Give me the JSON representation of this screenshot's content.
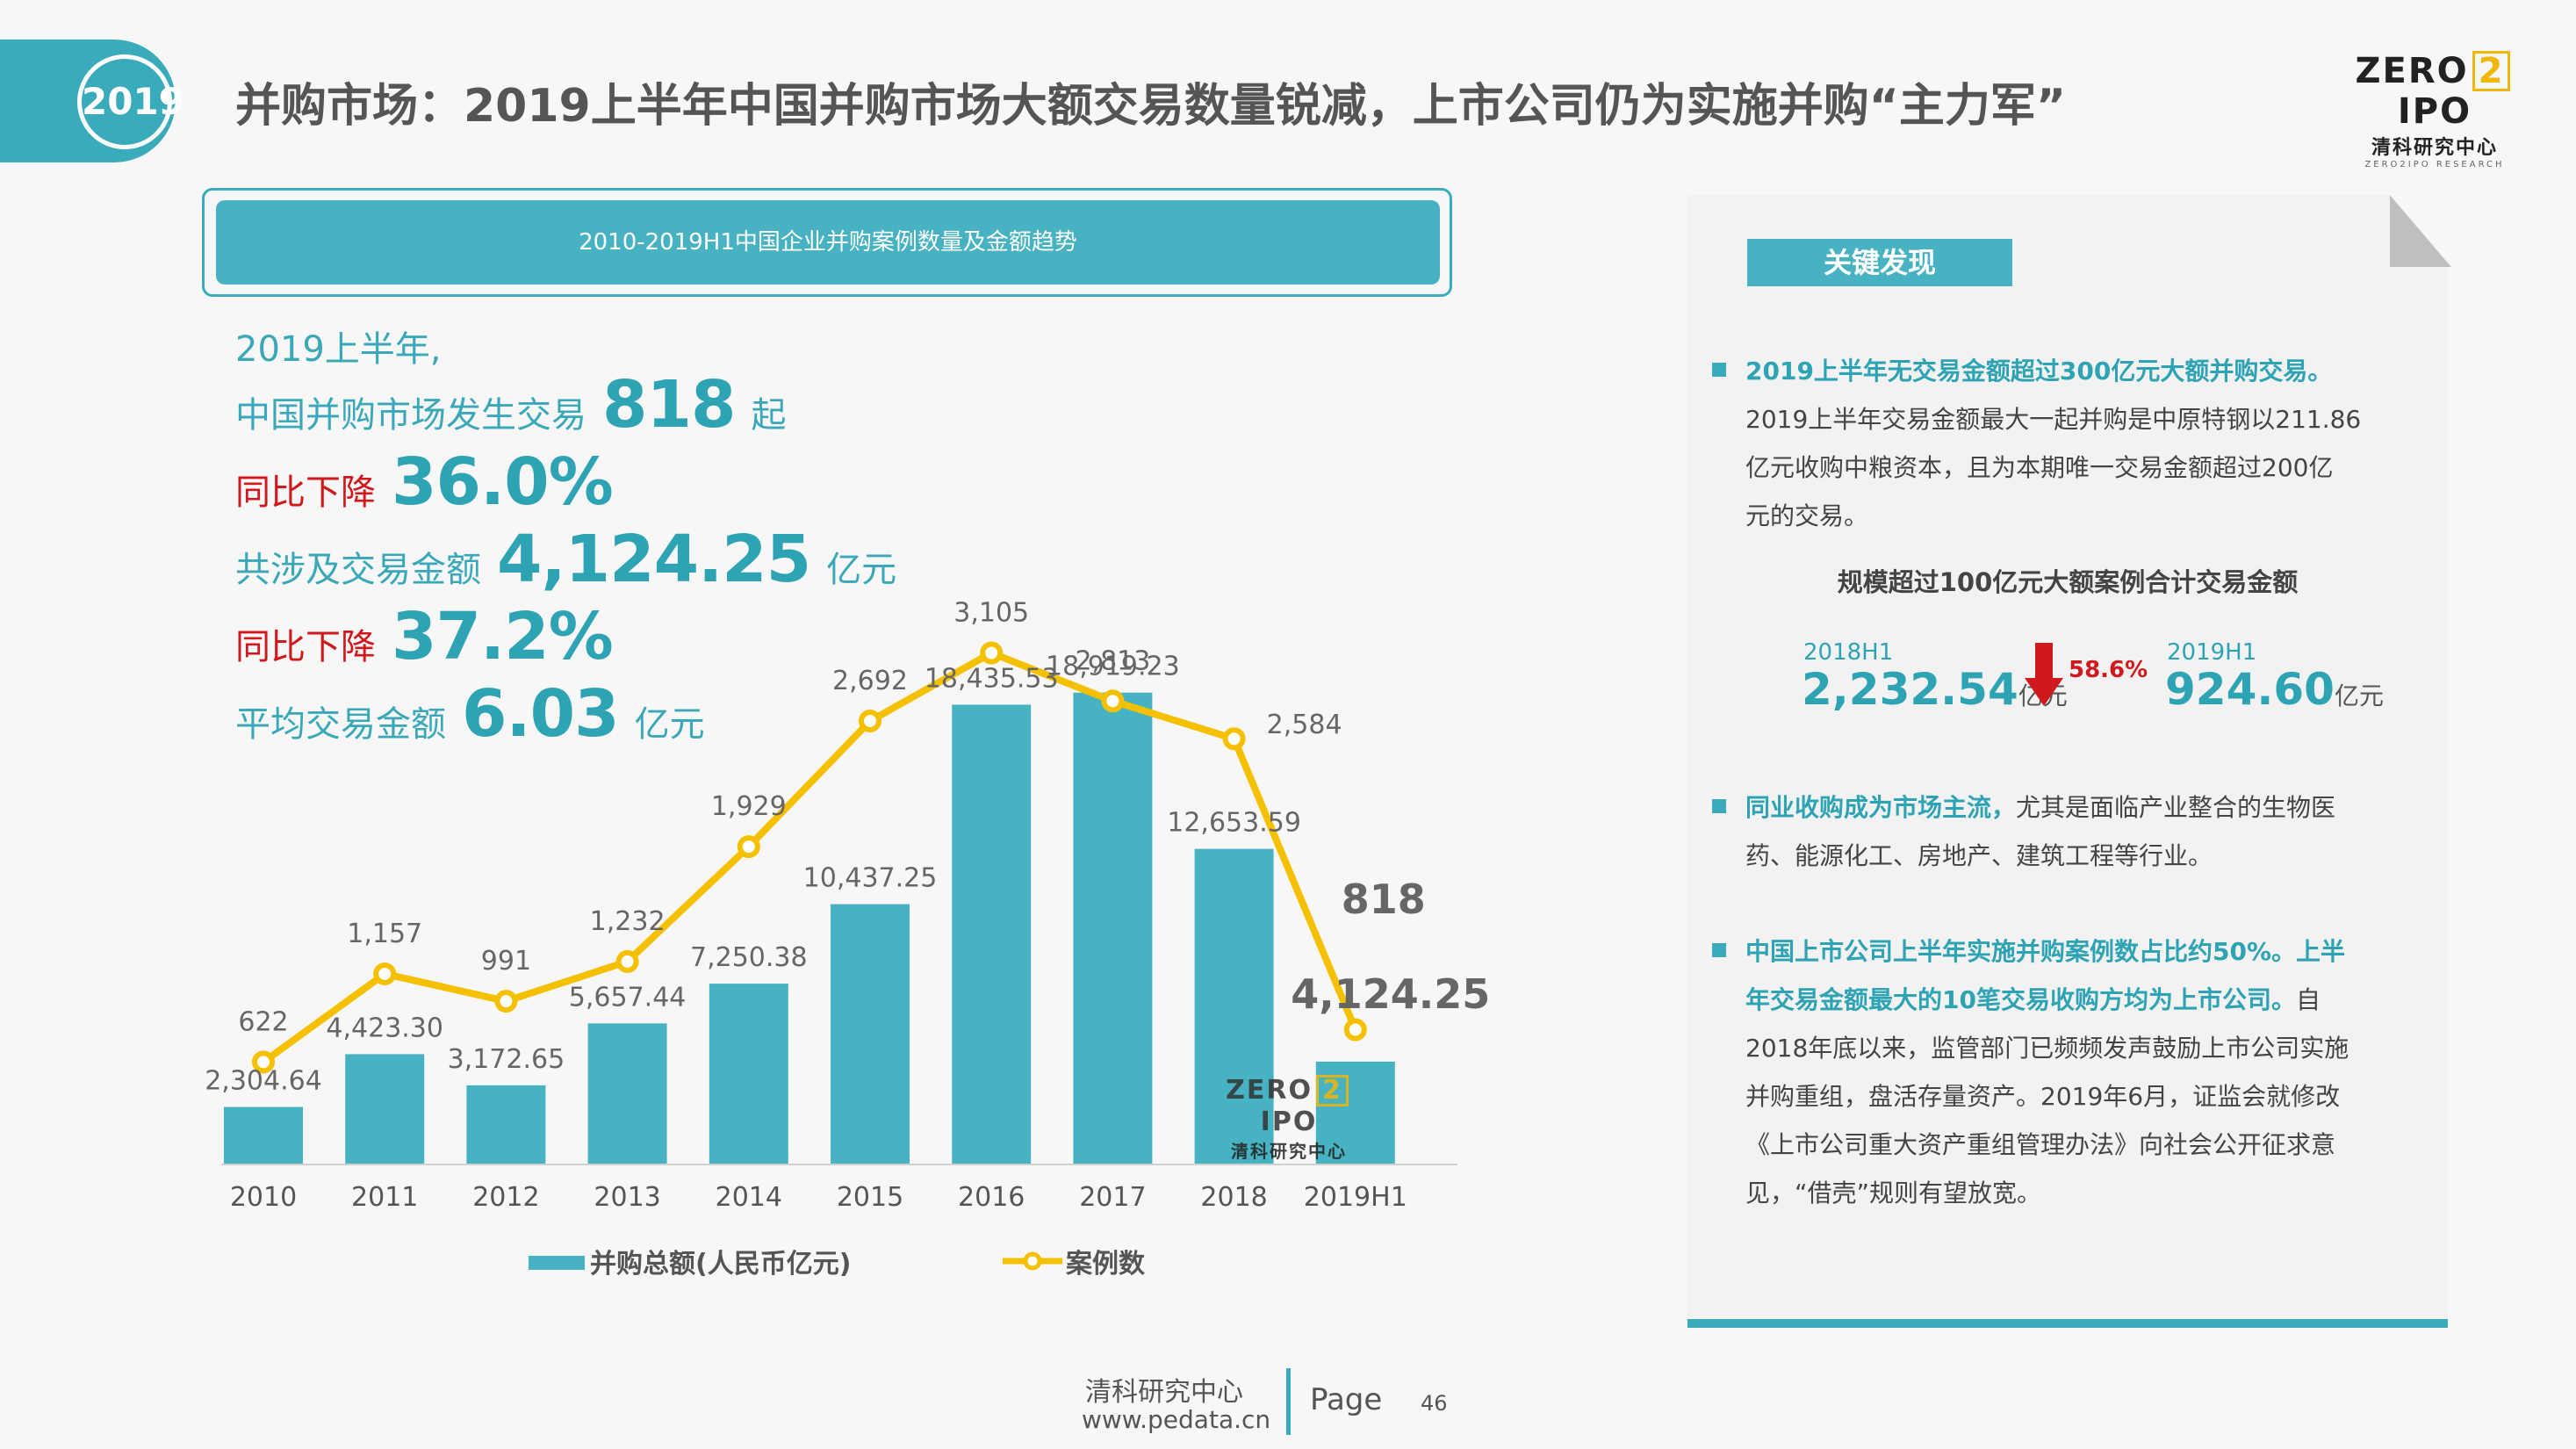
{
  "header": {
    "year_badge": "2019",
    "title": "并购市场：2019上半年中国并购市场大额交易数量锐减，上市公司仍为实施并购“主力军”",
    "logo": {
      "word_left": "ZERO",
      "word_num": "2",
      "word_right": "IPO",
      "cn": "清科研究中心",
      "en": "ZERO2IPO RESEARCH"
    }
  },
  "chart_banner": "2010-2019H1中国企业并购案例数量及金额趋势",
  "highlights": {
    "line1": "2019上半年,",
    "line2_label": "中国并购市场发生交易",
    "line2_value": "818",
    "line2_unit": "起",
    "line3_label": "同比下降",
    "line3_value": "36.0%",
    "line4_label": "共涉及交易金额",
    "line4_value": "4,124.25",
    "line4_unit": "亿元",
    "line5_label": "同比下降",
    "line5_value": "37.2%",
    "line6_label": "平均交易金额",
    "line6_value": "6.03",
    "line6_unit": "亿元"
  },
  "chart_data": {
    "type": "bar+line",
    "categories": [
      "2010",
      "2011",
      "2012",
      "2013",
      "2014",
      "2015",
      "2016",
      "2017",
      "2018",
      "2019H1"
    ],
    "series": [
      {
        "name": "并购总额(人民币亿元)",
        "type": "bar",
        "color": "#47b3c2",
        "values": [
          2304.64,
          4423.3,
          3172.65,
          5657.44,
          7250.38,
          10437.25,
          18435.53,
          18919.23,
          12653.59,
          4124.25
        ],
        "labels": [
          "2,304.64",
          "4,423.30",
          "3,172.65",
          "5,657.44",
          "7,250.38",
          "10,437.25",
          "18,435.53",
          "18,919.23",
          "12,653.59",
          "4,124.25"
        ]
      },
      {
        "name": "案例数",
        "type": "line",
        "color": "#f5c000",
        "values": [
          622,
          1157,
          991,
          1232,
          1929,
          2692,
          3105,
          2813,
          2584,
          818
        ],
        "labels": [
          "622",
          "1,157",
          "991",
          "1,232",
          "1,929",
          "2,692",
          "3,105",
          "2,813",
          "2,584",
          "818"
        ]
      }
    ],
    "legend_position": "bottom",
    "grid": false
  },
  "panel": {
    "title": "关键发现",
    "f1_strong": "2019上半年无交易金额超过300亿元大额并购交易。",
    "f1_lines": [
      "2019上半年交易金额最大一起并购是中原特钢以211.86",
      "亿元收购中粮资本，且为本期唯一交易金额超过200亿",
      "元的交易。"
    ],
    "sub_title": "规模超过100亿元大额案例合计交易金额",
    "cmp_year1": "2018H1",
    "cmp_value1": "2,232.54",
    "cmp_unit1": "亿元",
    "cmp_pct": "58.6%",
    "cmp_year2": "2019H1",
    "cmp_value2": "924.60",
    "cmp_unit2": "亿元",
    "f2_strong": "同业收购成为市场主流，",
    "f2_rest1": "尤其是面临产业整合的生物医",
    "f2_line2": "药、能源化工、房地产、建筑工程等行业。",
    "f3_strong1": "中国上市公司上半年实施并购案例数占比约50%。上半",
    "f3_strong2": "年交易金额最大的10笔交易收购方均为上市公司。",
    "f3_rest2": "自",
    "f3_lines": [
      "2018年底以来，监管部门已频频发声鼓励上市公司实施",
      "并购重组，盘活存量资产。2019年6月，证监会就修改",
      "《上市公司重大资产重组管理办法》向社会公开征求意",
      "见，“借壳”规则有望放宽。"
    ]
  },
  "colors": {
    "accent": "#3aabbb",
    "bar": "#47b3c2",
    "line": "#f5c000",
    "red": "#d0191d"
  },
  "footer": {
    "org": "清科研究中心",
    "url": "www.pedata.cn",
    "page_label": "Page",
    "page_num": "46"
  }
}
